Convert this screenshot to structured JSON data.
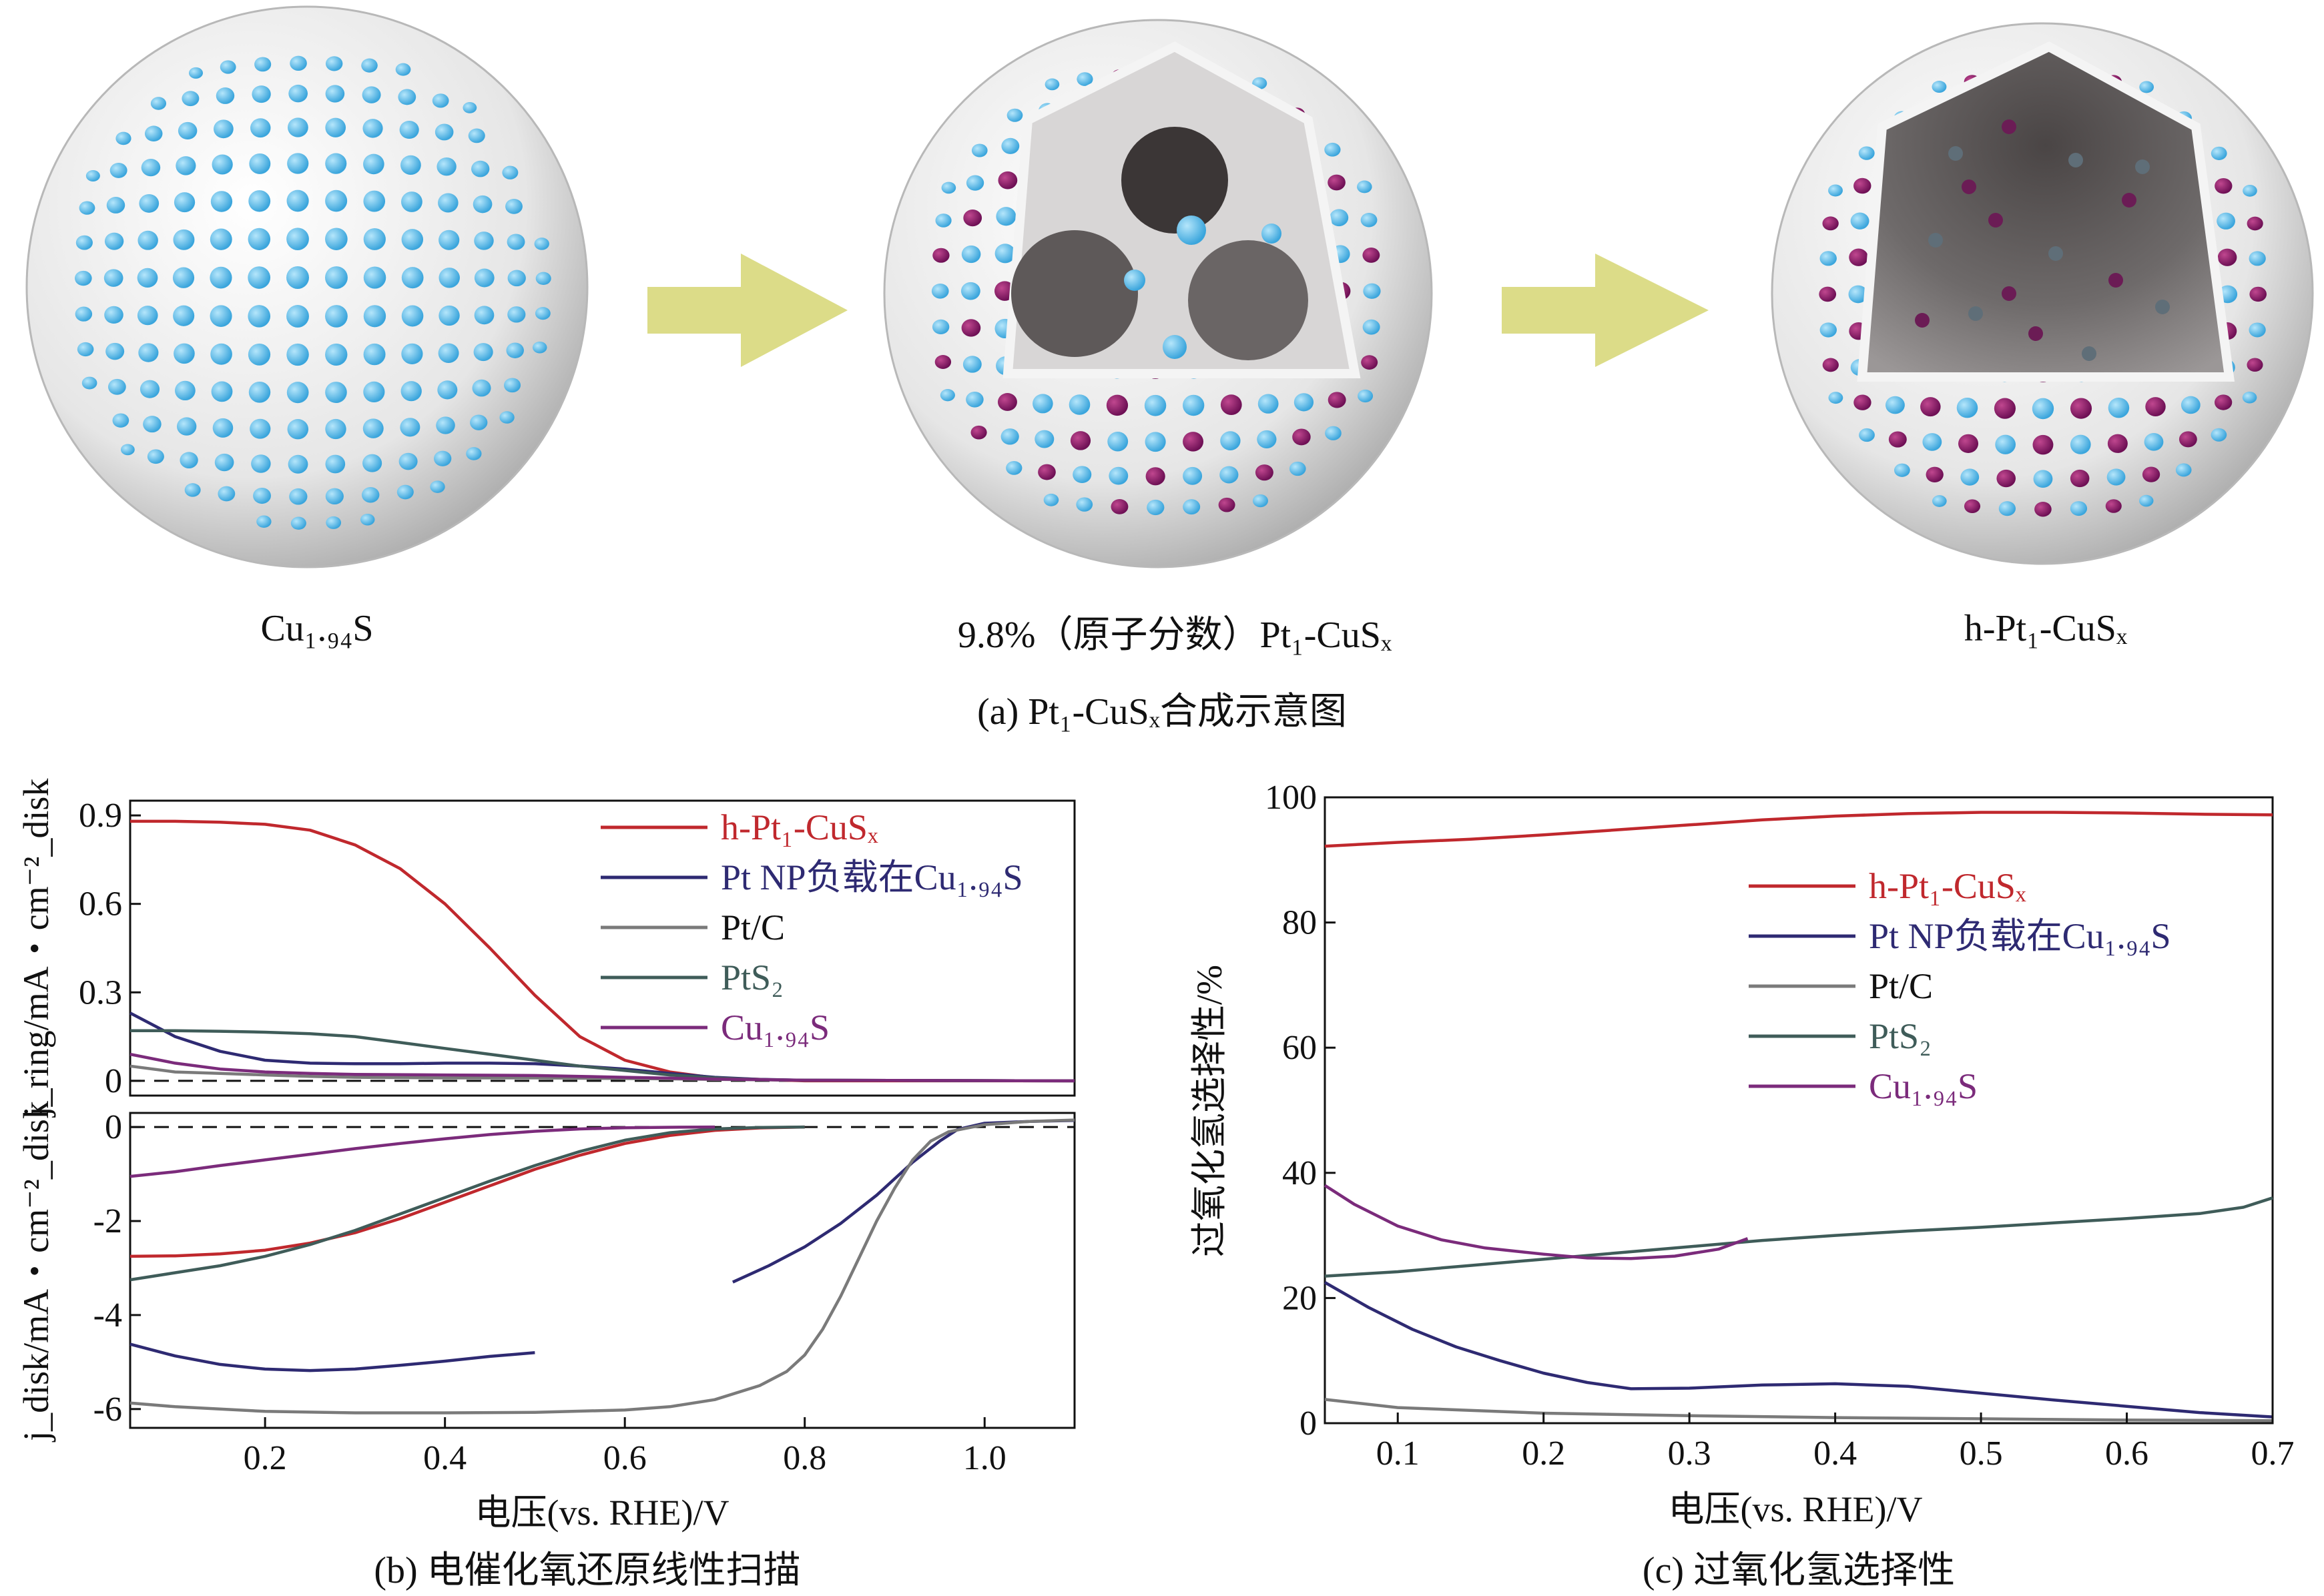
{
  "colors": {
    "h_pt1_cusx": "#c0282d",
    "pt_np_cu194s": "#2e2a72",
    "pt_c": "#7a7a7a",
    "pts2": "#3f5c59",
    "cu194s": "#7b2b7b",
    "shell": "#e8e8e8",
    "cu_atom": "#6cc3ec",
    "pt_atom": "#8b1a6b",
    "arrow": "#dcdc88"
  },
  "panel_a": {
    "caption": "(a) Pt₁-CuSₓ合成示意图",
    "arrow_icon": "right-arrow-icon",
    "stages": [
      {
        "label": "Cu₁.₉₄S"
      },
      {
        "label": "9.8%（原子分数）Pt₁-CuSₓ"
      },
      {
        "label": "h-Pt₁-CuSₓ"
      }
    ]
  },
  "chart_data": [
    {
      "type": "line",
      "panel": "b",
      "caption": "(b) 电催化氧还原线性扫描",
      "xlabel": "电压(vs. RHE)/V",
      "xlim": [
        0.05,
        1.1
      ],
      "xticks": [
        0.2,
        0.4,
        0.6,
        0.8,
        1.0
      ],
      "top": {
        "ylabel": "j_ring/mA・cm⁻²_disk",
        "ylim": [
          -0.05,
          0.95
        ],
        "yticks": [
          0,
          0.3,
          0.6,
          0.9
        ],
        "reference_line_y": 0,
        "series": [
          {
            "name": "h-Pt₁-CuSₓ",
            "color_key": "h_pt1_cusx",
            "x": [
              0.05,
              0.1,
              0.15,
              0.2,
              0.25,
              0.3,
              0.35,
              0.4,
              0.45,
              0.5,
              0.55,
              0.6,
              0.65,
              0.7,
              0.8,
              1.1
            ],
            "y": [
              0.88,
              0.88,
              0.877,
              0.87,
              0.85,
              0.8,
              0.72,
              0.6,
              0.45,
              0.29,
              0.15,
              0.07,
              0.03,
              0.01,
              0.0,
              0.0
            ]
          },
          {
            "name": "Pt NP负载在Cu₁.₉₄S",
            "color_key": "pt_np_cu194s",
            "x": [
              0.05,
              0.1,
              0.15,
              0.2,
              0.25,
              0.3,
              0.35,
              0.4,
              0.45,
              0.5,
              0.55,
              0.6,
              0.65,
              0.7,
              0.75,
              0.8,
              1.1
            ],
            "y": [
              0.23,
              0.15,
              0.1,
              0.07,
              0.06,
              0.058,
              0.058,
              0.06,
              0.06,
              0.058,
              0.05,
              0.04,
              0.025,
              0.012,
              0.005,
              0.002,
              0.0
            ]
          },
          {
            "name": "Pt/C",
            "color_key": "pt_c",
            "x": [
              0.05,
              0.1,
              0.15,
              0.2,
              0.25,
              0.3,
              0.4,
              0.5,
              0.6,
              0.7,
              0.8,
              1.1
            ],
            "y": [
              0.05,
              0.03,
              0.025,
              0.02,
              0.015,
              0.012,
              0.01,
              0.01,
              0.008,
              0.005,
              0.002,
              0.0
            ]
          },
          {
            "name": "PtS₂",
            "color_key": "pts2",
            "x": [
              0.05,
              0.1,
              0.15,
              0.2,
              0.25,
              0.3,
              0.35,
              0.4,
              0.45,
              0.5,
              0.55,
              0.6,
              0.65,
              0.7,
              0.75,
              0.8,
              1.1
            ],
            "y": [
              0.17,
              0.17,
              0.168,
              0.165,
              0.16,
              0.15,
              0.13,
              0.11,
              0.09,
              0.07,
              0.05,
              0.035,
              0.02,
              0.01,
              0.004,
              0.002,
              0.0
            ]
          },
          {
            "name": "Cu₁.₉₄S",
            "color_key": "cu194s",
            "x": [
              0.05,
              0.1,
              0.15,
              0.2,
              0.25,
              0.3,
              0.4,
              0.5,
              0.6,
              0.7,
              0.8,
              1.1
            ],
            "y": [
              0.09,
              0.06,
              0.04,
              0.03,
              0.025,
              0.022,
              0.02,
              0.018,
              0.012,
              0.006,
              0.002,
              0.0
            ]
          }
        ]
      },
      "bottom": {
        "ylabel": "j_disk/mA・cm⁻²_disk",
        "ylim": [
          -6.4,
          0.3
        ],
        "yticks": [
          0,
          -2,
          -4,
          -6
        ],
        "reference_line_y": 0,
        "series": [
          {
            "name": "h-Pt₁-CuSₓ",
            "color_key": "h_pt1_cusx",
            "x": [
              0.05,
              0.1,
              0.15,
              0.2,
              0.25,
              0.3,
              0.35,
              0.4,
              0.45,
              0.5,
              0.55,
              0.6,
              0.65,
              0.7,
              0.75,
              0.8
            ],
            "y": [
              -2.75,
              -2.74,
              -2.7,
              -2.62,
              -2.47,
              -2.25,
              -1.95,
              -1.6,
              -1.25,
              -0.9,
              -0.6,
              -0.35,
              -0.18,
              -0.07,
              -0.02,
              0.0
            ]
          },
          {
            "name": "Pt NP负载在Cu₁.₉₄S",
            "color_key": "pt_np_cu194s",
            "x": [
              0.05,
              0.1,
              0.15,
              0.2,
              0.25,
              0.3,
              0.35,
              0.4,
              0.45,
              0.5,
              null,
              0.72,
              0.76,
              0.8,
              0.84,
              0.88,
              0.92,
              0.95,
              0.97,
              1.0,
              1.05,
              1.1
            ],
            "y": [
              -4.62,
              -4.87,
              -5.05,
              -5.15,
              -5.18,
              -5.15,
              -5.07,
              -4.98,
              -4.88,
              -4.8,
              null,
              -3.3,
              -2.95,
              -2.55,
              -2.05,
              -1.45,
              -0.75,
              -0.3,
              -0.05,
              0.08,
              0.12,
              0.14
            ]
          },
          {
            "name": "Pt/C",
            "color_key": "pt_c",
            "x": [
              0.05,
              0.1,
              0.2,
              0.3,
              0.4,
              0.5,
              0.6,
              0.65,
              0.7,
              0.75,
              0.78,
              0.8,
              0.82,
              0.84,
              0.86,
              0.88,
              0.9,
              0.92,
              0.94,
              0.96,
              1.0,
              1.05,
              1.1
            ],
            "y": [
              -5.87,
              -5.95,
              -6.05,
              -6.08,
              -6.08,
              -6.07,
              -6.02,
              -5.95,
              -5.8,
              -5.5,
              -5.2,
              -4.85,
              -4.3,
              -3.6,
              -2.8,
              -2.0,
              -1.3,
              -0.7,
              -0.3,
              -0.1,
              0.05,
              0.12,
              0.15
            ]
          },
          {
            "name": "PtS₂",
            "color_key": "pts2",
            "x": [
              0.05,
              0.1,
              0.15,
              0.2,
              0.25,
              0.3,
              0.35,
              0.4,
              0.45,
              0.5,
              0.55,
              0.6,
              0.65,
              0.7,
              0.75,
              0.8
            ],
            "y": [
              -3.25,
              -3.1,
              -2.95,
              -2.75,
              -2.5,
              -2.2,
              -1.85,
              -1.5,
              -1.15,
              -0.82,
              -0.52,
              -0.28,
              -0.12,
              -0.04,
              -0.01,
              0.0
            ]
          },
          {
            "name": "Cu₁.₉₄S",
            "color_key": "cu194s",
            "x": [
              0.05,
              0.1,
              0.15,
              0.2,
              0.25,
              0.3,
              0.35,
              0.4,
              0.45,
              0.5,
              0.55,
              0.6,
              0.65,
              0.7
            ],
            "y": [
              -1.05,
              -0.95,
              -0.82,
              -0.7,
              -0.58,
              -0.46,
              -0.35,
              -0.25,
              -0.16,
              -0.09,
              -0.04,
              -0.015,
              -0.005,
              0.0
            ]
          }
        ]
      }
    },
    {
      "type": "line",
      "panel": "c",
      "caption": "(c) 过氧化氢选择性",
      "xlabel": "电压(vs. RHE)/V",
      "ylabel": "过氧化氢选择性/%",
      "xlim": [
        0.05,
        0.7
      ],
      "ylim": [
        0,
        100
      ],
      "xticks": [
        0.1,
        0.2,
        0.3,
        0.4,
        0.5,
        0.6,
        0.7
      ],
      "yticks": [
        0,
        20,
        40,
        60,
        80,
        100
      ],
      "series": [
        {
          "name": "h-Pt₁-CuSₓ",
          "color_key": "h_pt1_cusx",
          "x": [
            0.05,
            0.1,
            0.15,
            0.2,
            0.25,
            0.3,
            0.35,
            0.4,
            0.45,
            0.5,
            0.55,
            0.6,
            0.65,
            0.7
          ],
          "y": [
            92.2,
            92.8,
            93.3,
            94.0,
            94.8,
            95.6,
            96.4,
            97.0,
            97.4,
            97.6,
            97.6,
            97.5,
            97.3,
            97.2
          ]
        },
        {
          "name": "Pt NP负载在Cu₁.₉₄S",
          "color_key": "pt_np_cu194s",
          "x": [
            0.05,
            0.08,
            0.11,
            0.14,
            0.17,
            0.2,
            0.23,
            0.26,
            0.3,
            0.35,
            0.4,
            0.45,
            0.5,
            0.55,
            0.6,
            0.65,
            0.7
          ],
          "y": [
            22.5,
            18.5,
            15.0,
            12.2,
            10.0,
            8.0,
            6.5,
            5.5,
            5.6,
            6.1,
            6.3,
            5.9,
            4.8,
            3.7,
            2.7,
            1.7,
            1.0
          ]
        },
        {
          "name": "Pt/C",
          "color_key": "pt_c",
          "x": [
            0.05,
            0.1,
            0.2,
            0.3,
            0.4,
            0.5,
            0.6,
            0.7
          ],
          "y": [
            3.8,
            2.5,
            1.6,
            1.2,
            0.9,
            0.7,
            0.5,
            0.4
          ]
        },
        {
          "name": "PtS₂",
          "color_key": "pts2",
          "x": [
            0.05,
            0.1,
            0.15,
            0.2,
            0.25,
            0.3,
            0.35,
            0.4,
            0.45,
            0.5,
            0.55,
            0.6,
            0.65,
            0.68,
            0.7
          ],
          "y": [
            23.5,
            24.2,
            25.2,
            26.2,
            27.2,
            28.2,
            29.2,
            30.0,
            30.7,
            31.3,
            32.0,
            32.7,
            33.5,
            34.5,
            36.0
          ]
        },
        {
          "name": "Cu₁.₉₄S",
          "color_key": "cu194s",
          "x": [
            0.05,
            0.07,
            0.1,
            0.13,
            0.16,
            0.2,
            0.23,
            0.26,
            0.29,
            0.32,
            0.34
          ],
          "y": [
            38.0,
            35.0,
            31.5,
            29.3,
            28.0,
            27.0,
            26.4,
            26.3,
            26.7,
            27.8,
            29.5
          ]
        }
      ]
    }
  ]
}
